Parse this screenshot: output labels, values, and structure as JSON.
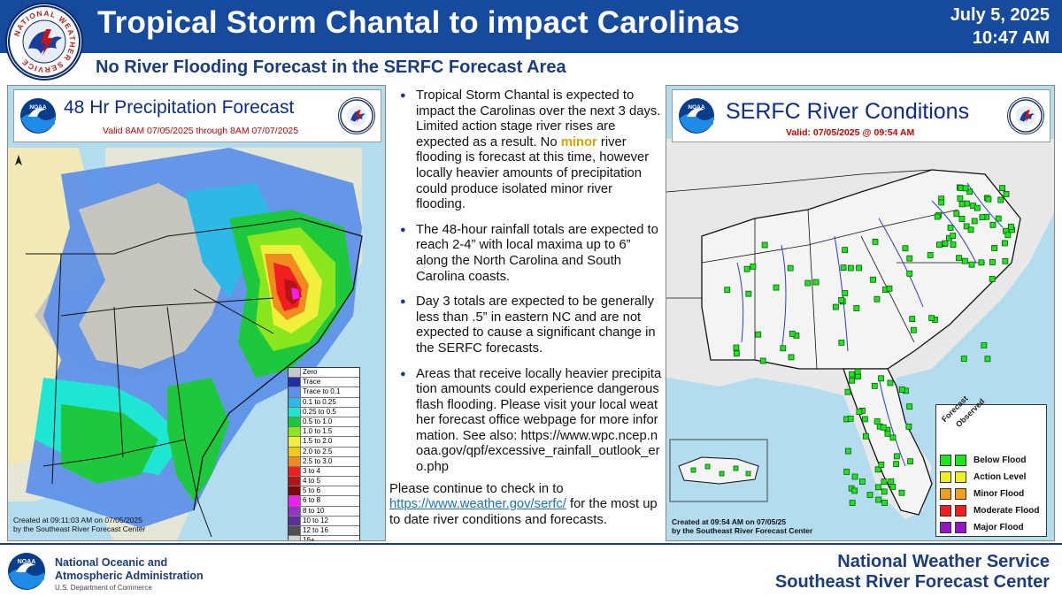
{
  "header": {
    "title": "Tropical Storm Chantal to impact Carolinas",
    "date": "July 5, 2025",
    "time": "10:47 AM",
    "subtitle": "No River Flooding Forecast in the SERFC Forecast Area",
    "seal_text": "NATIONAL WEATHER SERVICE"
  },
  "colors": {
    "header_blue": "#164a9c",
    "text_blue": "#1a3c80",
    "minor_highlight": "#e8a000",
    "valid_red": "#d00000"
  },
  "precip_map": {
    "title": "48 Hr Precipitation Forecast",
    "valid": "Valid 8AM 07/05/2025 through 8AM 07/07/2025",
    "created_line1": "Created at 09:11:03 AM on 07/05/2025",
    "created_line2": "by the Southeast River Forecast Center",
    "noaa_logo_text": "NOAA",
    "legend": [
      {
        "label": "Zero",
        "color": "#c8c8c8"
      },
      {
        "label": "Trace",
        "color": "#1f2fa8"
      },
      {
        "label": "Trace to 0.1",
        "color": "#5b8fe8"
      },
      {
        "label": "0.1 to 0.25",
        "color": "#2db8e8"
      },
      {
        "label": "0.25 to 0.5",
        "color": "#1ee6d2"
      },
      {
        "label": "0.5 to 1.0",
        "color": "#1ec83c"
      },
      {
        "label": "1.0 to 1.5",
        "color": "#8ce61e"
      },
      {
        "label": "1.5 to 2.0",
        "color": "#f0f03c"
      },
      {
        "label": "2.0 to 2.5",
        "color": "#f0c81e"
      },
      {
        "label": "2.5 to 3.0",
        "color": "#f08c1e"
      },
      {
        "label": "3 to 4",
        "color": "#f01e1e"
      },
      {
        "label": "4 to 5",
        "color": "#b41414"
      },
      {
        "label": "5 to 6",
        "color": "#780a0a"
      },
      {
        "label": "6 to 8",
        "color": "#f01ef0"
      },
      {
        "label": "8 to 10",
        "color": "#9632c8"
      },
      {
        "label": "10 to 12",
        "color": "#5a3296"
      },
      {
        "label": "12 to 16",
        "color": "#505050"
      },
      {
        "label": "16+",
        "color": "#d2d2d2"
      }
    ]
  },
  "river_map": {
    "title": "SERFC River Conditions",
    "valid": "Valid: 07/05/2025 @ 09:54 AM",
    "created_line1": "Created at 09:54 AM on 07/05/25",
    "created_line2": "by the Southeast River Forecast Center",
    "noaa_logo_text": "NOAA",
    "legend_header_forecast": "Forecast",
    "legend_header_observed": "Observed",
    "legend": [
      {
        "label": "Below Flood",
        "color": "#1ee61e"
      },
      {
        "label": "Action Level",
        "color": "#f0f01e"
      },
      {
        "label": "Minor Flood",
        "color": "#f0a01e"
      },
      {
        "label": "Moderate Flood",
        "color": "#f01e1e"
      },
      {
        "label": "Major Flood",
        "color": "#9614c8"
      }
    ]
  },
  "bullets": {
    "b1_before": "Tropical Storm Chantal is expected to impact the Carolinas over the next 3 days. Limited action stage river rises are expected as a result. No ",
    "b1_highlight": "minor",
    "b1_after": " river flooding is forecast at this time, however locally heavier amounts of precipitation could produce isolated minor river flooding.",
    "b2": "The 48-hour rainfall totals are expected to reach 2-4” with local maxima up to 6” along the North Carolina and South Carolina coasts.",
    "b3": "Day 3 totals are expected to be generally less than .5” in eastern NC and are not expected to cause a significant change in the SERFC forecasts.",
    "b4": "Areas that receive locally heavier precipitation amounts could experience dangerous flash flooding. Please visit your local weather forecast office webpage for more information. See also: https://www.wpc.ncep.noaa.gov/qpf/excessive_rainfall_outlook_ero.php",
    "continue_before": "Please continue to check in to ",
    "continue_link": "https://www.weather.gov/serfc/",
    "continue_after": "  for the most up to date river conditions and forecasts."
  },
  "footer": {
    "noaa_line1": "National Oceanic and",
    "noaa_line2": "Atmospheric Administration",
    "noaa_dept": "U.S. Department of Commerce",
    "nws": "National Weather Service",
    "serfc": "Southeast River Forecast Center",
    "noaa_logo_text": "NOAA"
  }
}
